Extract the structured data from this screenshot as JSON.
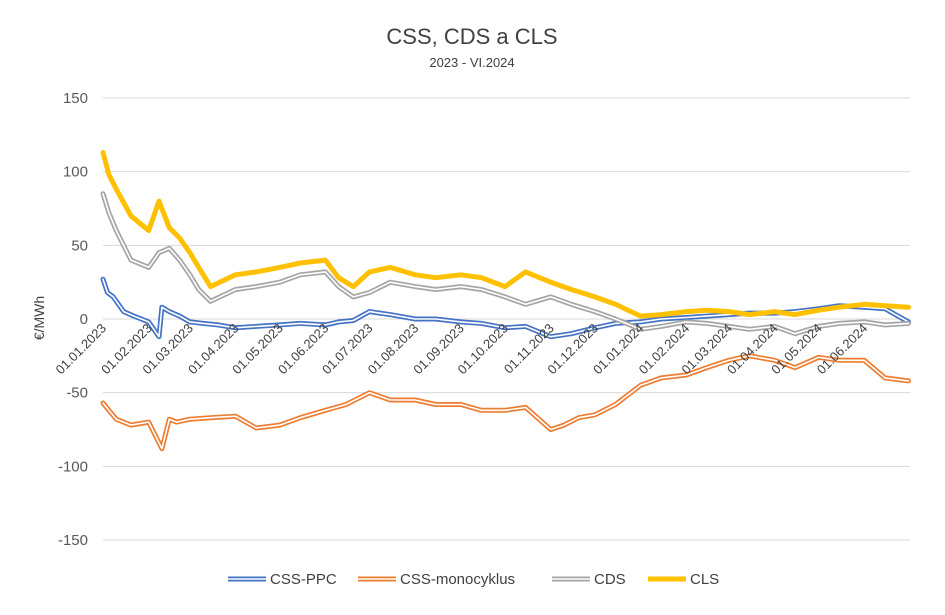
{
  "chart_data": {
    "type": "line",
    "title": "CSS, CDS a CLS",
    "subtitle": "2023 - VI.2024",
    "ylabel": "€/MWh",
    "xlabel": "",
    "ylim": [
      -150,
      150
    ],
    "y_ticks": [
      150,
      100,
      50,
      0,
      -50,
      -100,
      -150
    ],
    "grid": true,
    "legend_position": "bottom",
    "x_range": [
      "2023-01-01",
      "2024-07-02"
    ],
    "x_tick_labels": [
      "01.01.2023",
      "01.02.2023",
      "01.03.2023",
      "01.04.2023",
      "01.05.2023",
      "01.06.2023",
      "01.07.2023",
      "01.08.2023",
      "01.09.2023",
      "01.10.2023",
      "01.11.2023",
      "01.12.2023",
      "01.01.2024",
      "01.02.2024",
      "01.03.2024",
      "01.04.2024",
      "01.05.2024",
      "01.06.2024"
    ],
    "x_tick_dates": [
      "2023-01-01",
      "2023-02-01",
      "2023-03-01",
      "2023-04-01",
      "2023-05-01",
      "2023-06-01",
      "2023-07-01",
      "2023-08-01",
      "2023-09-01",
      "2023-10-01",
      "2023-11-01",
      "2023-12-01",
      "2024-01-01",
      "2024-02-01",
      "2024-03-01",
      "2024-04-01",
      "2024-05-01",
      "2024-06-01"
    ],
    "series": [
      {
        "name": "CSS-PPC",
        "color": "#4472C4",
        "style": "double",
        "x": [
          "2023-01-01",
          "2023-01-04",
          "2023-01-08",
          "2023-01-15",
          "2023-01-22",
          "2023-02-01",
          "2023-02-08",
          "2023-02-10",
          "2023-02-15",
          "2023-02-22",
          "2023-03-01",
          "2023-03-10",
          "2023-03-20",
          "2023-04-01",
          "2023-04-15",
          "2023-05-01",
          "2023-05-15",
          "2023-06-01",
          "2023-06-10",
          "2023-06-20",
          "2023-07-01",
          "2023-07-15",
          "2023-08-01",
          "2023-08-15",
          "2023-09-01",
          "2023-09-15",
          "2023-10-01",
          "2023-10-15",
          "2023-11-01",
          "2023-11-15",
          "2023-12-01",
          "2023-12-15",
          "2024-01-01",
          "2024-01-15",
          "2024-02-01",
          "2024-02-15",
          "2024-03-01",
          "2024-03-15",
          "2024-04-01",
          "2024-04-15",
          "2024-05-01",
          "2024-05-15",
          "2024-06-01",
          "2024-06-15",
          "2024-07-01"
        ],
        "values": [
          27,
          18,
          15,
          5,
          2,
          -2,
          -12,
          8,
          5,
          2,
          -2,
          -3,
          -4,
          -6,
          -5,
          -4,
          -3,
          -4,
          -2,
          -1,
          5,
          3,
          0,
          0,
          -2,
          -3,
          -6,
          -5,
          -12,
          -10,
          -6,
          -3,
          -2,
          0,
          1,
          2,
          3,
          4,
          4,
          5,
          7,
          9,
          8,
          7,
          -2
        ]
      },
      {
        "name": "CSS-monocyklus",
        "color": "#ED7D31",
        "style": "double",
        "x": [
          "2023-01-01",
          "2023-01-05",
          "2023-01-10",
          "2023-01-20",
          "2023-02-01",
          "2023-02-10",
          "2023-02-15",
          "2023-02-20",
          "2023-03-01",
          "2023-03-15",
          "2023-04-01",
          "2023-04-15",
          "2023-05-01",
          "2023-05-15",
          "2023-06-01",
          "2023-06-15",
          "2023-07-01",
          "2023-07-15",
          "2023-08-01",
          "2023-08-15",
          "2023-09-01",
          "2023-09-15",
          "2023-10-01",
          "2023-10-15",
          "2023-11-01",
          "2023-11-10",
          "2023-11-20",
          "2023-12-01",
          "2023-12-15",
          "2024-01-01",
          "2024-01-15",
          "2024-02-01",
          "2024-02-15",
          "2024-03-01",
          "2024-03-15",
          "2024-04-01",
          "2024-04-15",
          "2024-05-01",
          "2024-05-15",
          "2024-06-01",
          "2024-06-15",
          "2024-07-01"
        ],
        "values": [
          -57,
          -62,
          -68,
          -72,
          -70,
          -88,
          -68,
          -70,
          -68,
          -67,
          -66,
          -74,
          -72,
          -67,
          -62,
          -58,
          -50,
          -55,
          -55,
          -58,
          -58,
          -62,
          -62,
          -60,
          -75,
          -72,
          -67,
          -65,
          -58,
          -45,
          -40,
          -38,
          -33,
          -28,
          -25,
          -28,
          -33,
          -26,
          -28,
          -28,
          -40,
          -42
        ]
      },
      {
        "name": "CDS",
        "color": "#A5A5A5",
        "style": "double",
        "x": [
          "2023-01-01",
          "2023-01-05",
          "2023-01-10",
          "2023-01-20",
          "2023-02-01",
          "2023-02-08",
          "2023-02-15",
          "2023-02-22",
          "2023-03-01",
          "2023-03-07",
          "2023-03-15",
          "2023-04-01",
          "2023-04-15",
          "2023-05-01",
          "2023-05-15",
          "2023-06-01",
          "2023-06-10",
          "2023-06-20",
          "2023-07-01",
          "2023-07-15",
          "2023-08-01",
          "2023-08-15",
          "2023-09-01",
          "2023-09-15",
          "2023-10-01",
          "2023-10-15",
          "2023-11-01",
          "2023-11-15",
          "2023-12-01",
          "2023-12-15",
          "2024-01-01",
          "2024-01-15",
          "2024-02-01",
          "2024-02-15",
          "2024-03-01",
          "2024-03-15",
          "2024-04-01",
          "2024-04-15",
          "2024-05-01",
          "2024-05-15",
          "2024-06-01",
          "2024-06-15",
          "2024-07-01"
        ],
        "values": [
          85,
          72,
          60,
          40,
          35,
          45,
          48,
          40,
          30,
          20,
          12,
          20,
          22,
          25,
          30,
          32,
          22,
          15,
          18,
          25,
          22,
          20,
          22,
          20,
          15,
          10,
          15,
          10,
          5,
          0,
          -7,
          -5,
          -2,
          -3,
          -5,
          -7,
          -5,
          -10,
          -5,
          -3,
          -2,
          -4,
          -3
        ]
      },
      {
        "name": "CLS",
        "color": "#FFC000",
        "style": "solid",
        "x": [
          "2023-01-01",
          "2023-01-05",
          "2023-01-10",
          "2023-01-20",
          "2023-02-01",
          "2023-02-08",
          "2023-02-15",
          "2023-02-22",
          "2023-03-01",
          "2023-03-07",
          "2023-03-15",
          "2023-04-01",
          "2023-04-15",
          "2023-05-01",
          "2023-05-15",
          "2023-06-01",
          "2023-06-10",
          "2023-06-20",
          "2023-07-01",
          "2023-07-15",
          "2023-08-01",
          "2023-08-15",
          "2023-09-01",
          "2023-09-15",
          "2023-10-01",
          "2023-10-15",
          "2023-11-01",
          "2023-11-15",
          "2023-12-01",
          "2023-12-15",
          "2024-01-01",
          "2024-01-15",
          "2024-02-01",
          "2024-02-15",
          "2024-03-01",
          "2024-03-15",
          "2024-04-01",
          "2024-04-15",
          "2024-05-01",
          "2024-05-15",
          "2024-06-01",
          "2024-06-15",
          "2024-07-01"
        ],
        "values": [
          113,
          98,
          88,
          70,
          60,
          80,
          62,
          55,
          45,
          35,
          22,
          30,
          32,
          35,
          38,
          40,
          28,
          22,
          32,
          35,
          30,
          28,
          30,
          28,
          22,
          32,
          25,
          20,
          15,
          10,
          2,
          3,
          5,
          6,
          5,
          3,
          5,
          3,
          6,
          8,
          10,
          9,
          8
        ]
      }
    ]
  }
}
